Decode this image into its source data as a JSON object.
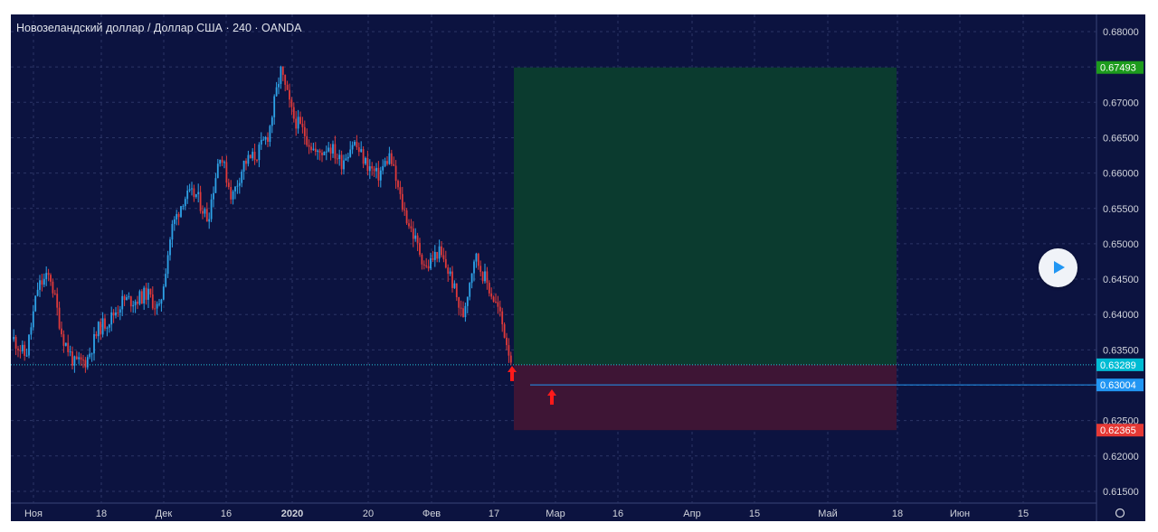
{
  "title": "Новозеландский доллар / Доллар США · 240 · OANDA",
  "colors": {
    "background": "#0c1340",
    "grid": "#2b3566",
    "candle_up": "#2ea3e8",
    "candle_down": "#e03a3a",
    "profit_zone": "#0b3b2f",
    "loss_zone": "#3e1535",
    "entry_line": "#26c6da",
    "level_line": "#2196f3",
    "arrow": "#ff1a1a",
    "axis_text": "#d1d4dc"
  },
  "price_axis_ticks": [
    "0.68000",
    "0.67500",
    "0.67000",
    "0.66500",
    "0.66000",
    "0.65500",
    "0.65000",
    "0.64500",
    "0.64000",
    "0.63500",
    "0.63000",
    "0.62500",
    "0.62000",
    "0.61500"
  ],
  "time_axis_ticks": [
    "Ноя",
    "18",
    "Дек",
    "16",
    "2020",
    "20",
    "Фев",
    "17",
    "Мар",
    "16",
    "Апр",
    "15",
    "Май",
    "18",
    "Июн",
    "15"
  ],
  "markers": [
    {
      "label": "0.67493",
      "price": 0.67493,
      "color": "#1d9b1d"
    },
    {
      "label": "0.63289",
      "price": 0.63289,
      "color": "#00bcd4"
    },
    {
      "label": "0.63004",
      "price": 0.63004,
      "color": "#2196f3"
    },
    {
      "label": "0.62365",
      "price": 0.62365,
      "color": "#e53935"
    }
  ],
  "chart_data": {
    "type": "line",
    "title": "Новозеландский доллар / Доллар США · 240 · OANDA",
    "y_range": [
      0.615,
      0.6805
    ],
    "x_range": [
      "Ноя",
      "Июн 15+"
    ],
    "series": [
      {
        "values": [
          0.6365,
          0.634,
          0.644,
          0.6455,
          0.637,
          0.633,
          0.6335,
          0.638,
          0.6395,
          0.642,
          0.642,
          0.643,
          0.6405,
          0.652,
          0.6565,
          0.657,
          0.6535,
          0.663,
          0.6565,
          0.6615,
          0.6625,
          0.6655,
          0.6745,
          0.668,
          0.6655,
          0.6625,
          0.664,
          0.6615,
          0.6645,
          0.6615,
          0.6595,
          0.6625,
          0.6555,
          0.651,
          0.6465,
          0.649,
          0.6455,
          0.6395,
          0.6485,
          0.6445,
          0.6405,
          0.6338
        ]
      }
    ],
    "position": {
      "entry": 0.63289,
      "target": 0.67493,
      "stop": 0.62365,
      "level": 0.63004
    },
    "grid": true
  }
}
